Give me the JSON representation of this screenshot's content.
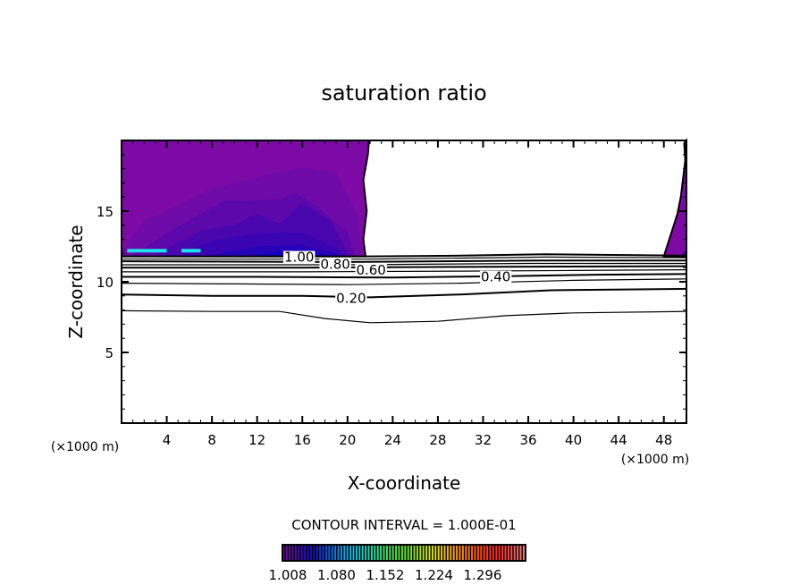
{
  "chart_data": {
    "type": "contour",
    "title": "saturation ratio",
    "xlabel": "X-coordinate",
    "ylabel": "Z-coordinate",
    "x_unit_left": "(×1000 m)",
    "x_unit_right": "(×1000 m)",
    "xlim": [
      0,
      50
    ],
    "ylim": [
      0,
      20
    ],
    "xticks": [
      4,
      8,
      12,
      16,
      20,
      24,
      28,
      32,
      36,
      40,
      44,
      48
    ],
    "yticks": [
      5,
      10,
      15
    ],
    "contour_interval_text": "CONTOUR INTERVAL = 1.000E-01",
    "contours": [
      {
        "level": 0.1,
        "label": "",
        "points": [
          [
            0,
            7.95
          ],
          [
            8,
            7.9
          ],
          [
            14,
            7.9
          ],
          [
            18,
            7.4
          ],
          [
            22,
            7.1
          ],
          [
            28,
            7.2
          ],
          [
            34,
            7.6
          ],
          [
            40,
            7.8
          ],
          [
            50,
            7.9
          ]
        ]
      },
      {
        "level": 0.2,
        "label": "0.20",
        "label_at": [
          19,
          8.9
        ],
        "points": [
          [
            0,
            9.1
          ],
          [
            8,
            9.0
          ],
          [
            16,
            9.0
          ],
          [
            22,
            8.9
          ],
          [
            30,
            9.1
          ],
          [
            38,
            9.4
          ],
          [
            50,
            9.5
          ]
        ]
      },
      {
        "level": 0.3,
        "label": "",
        "points": [
          [
            0,
            9.9
          ],
          [
            10,
            9.85
          ],
          [
            20,
            9.8
          ],
          [
            30,
            9.9
          ],
          [
            40,
            10.1
          ],
          [
            50,
            10.2
          ]
        ]
      },
      {
        "level": 0.4,
        "label": "0.40",
        "label_at": [
          31.8,
          10.4
        ],
        "points": [
          [
            0,
            10.35
          ],
          [
            12,
            10.35
          ],
          [
            24,
            10.3
          ],
          [
            34,
            10.4
          ],
          [
            42,
            10.5
          ],
          [
            50,
            10.55
          ]
        ]
      },
      {
        "level": 0.5,
        "label": "",
        "points": [
          [
            0,
            10.7
          ],
          [
            16,
            10.7
          ],
          [
            30,
            10.75
          ],
          [
            40,
            10.8
          ],
          [
            50,
            10.85
          ]
        ]
      },
      {
        "level": 0.6,
        "label": "0.60",
        "label_at": [
          17.6,
          10.9
        ],
        "points": [
          [
            0,
            11.0
          ],
          [
            16,
            11.0
          ],
          [
            30,
            11.05
          ],
          [
            50,
            11.1
          ]
        ]
      },
      {
        "level": 0.7,
        "label": "",
        "points": [
          [
            0,
            11.2
          ],
          [
            20,
            11.2
          ],
          [
            36,
            11.3
          ],
          [
            50,
            11.3
          ]
        ]
      },
      {
        "level": 0.8,
        "label": "0.80",
        "label_at": [
          17.6,
          11.3
        ],
        "points": [
          [
            0,
            11.45
          ],
          [
            20,
            11.4
          ],
          [
            37,
            11.5
          ],
          [
            50,
            11.5
          ]
        ]
      },
      {
        "level": 0.9,
        "label": "",
        "points": [
          [
            0,
            11.6
          ],
          [
            22,
            11.6
          ],
          [
            37.5,
            11.75
          ],
          [
            50,
            11.7
          ]
        ]
      },
      {
        "level": 1.0,
        "label": "1.00",
        "label_at": [
          14.4,
          11.8
        ],
        "points": [
          [
            0,
            11.8
          ],
          [
            22,
            11.8
          ],
          [
            30,
            11.85
          ],
          [
            37.5,
            11.95
          ],
          [
            50,
            11.85
          ]
        ]
      }
    ],
    "filled_regions": [
      {
        "value": 1.008,
        "color": "#7e0aa6",
        "points": [
          [
            0,
            20
          ],
          [
            21.9,
            20
          ],
          [
            21.8,
            19
          ],
          [
            21.4,
            17.2
          ],
          [
            21.7,
            15
          ],
          [
            21.4,
            13
          ],
          [
            21.6,
            11.8
          ],
          [
            0,
            11.8
          ]
        ]
      },
      {
        "value": 1.01,
        "color": "#6e0aa8",
        "points": [
          [
            0,
            12.2
          ],
          [
            2,
            14.3
          ],
          [
            8,
            16.6
          ],
          [
            14,
            17.8
          ],
          [
            16,
            18.1
          ],
          [
            19,
            17.7
          ],
          [
            21,
            14.5
          ],
          [
            21.2,
            11.8
          ],
          [
            0,
            11.8
          ]
        ]
      },
      {
        "value": 1.02,
        "color": "#5c08ab",
        "points": [
          [
            1,
            11.9
          ],
          [
            5,
            13.9
          ],
          [
            9,
            15.7
          ],
          [
            14,
            15.8
          ],
          [
            15.4,
            16.3
          ],
          [
            17,
            15.5
          ],
          [
            20,
            13.5
          ],
          [
            20.7,
            11.8
          ],
          [
            0,
            11.8
          ]
        ]
      },
      {
        "value": 1.03,
        "color": "#4a06ae",
        "points": [
          [
            3,
            11.9
          ],
          [
            7,
            13.6
          ],
          [
            10,
            14.0
          ],
          [
            12,
            14.8
          ],
          [
            14,
            14.1
          ],
          [
            16,
            15.6
          ],
          [
            18.5,
            14.3
          ],
          [
            20.2,
            11.8
          ],
          [
            2,
            11.8
          ]
        ]
      },
      {
        "value": 1.04,
        "color": "#3a04b2",
        "points": [
          [
            5,
            11.9
          ],
          [
            8,
            12.9
          ],
          [
            12,
            13.4
          ],
          [
            16,
            13.5
          ],
          [
            19,
            12.4
          ],
          [
            19.8,
            11.8
          ],
          [
            4,
            11.8
          ]
        ]
      },
      {
        "value": 1.05,
        "color": "#2602b8",
        "points": [
          [
            8,
            11.9
          ],
          [
            12,
            12.5
          ],
          [
            16,
            12.6
          ],
          [
            19,
            12.0
          ],
          [
            19.4,
            11.8
          ],
          [
            8,
            11.8
          ]
        ]
      },
      {
        "value": 1.06,
        "color": "#1400c0",
        "points": [
          [
            11,
            11.8
          ],
          [
            14,
            12.15
          ],
          [
            17,
            12.1
          ],
          [
            18.5,
            11.8
          ]
        ]
      },
      {
        "value": 1.008,
        "color": "#7e0aa6",
        "points": [
          [
            48,
            11.8
          ],
          [
            49.2,
            14.8
          ],
          [
            49.5,
            16.0
          ],
          [
            49.9,
            18.6
          ],
          [
            49.8,
            19.8
          ],
          [
            50,
            20
          ],
          [
            50,
            11.8
          ]
        ]
      },
      {
        "value": 1.02,
        "color": "#5c08ab",
        "points": [
          [
            49.4,
            11.8
          ],
          [
            50,
            12.4
          ],
          [
            50,
            11.8
          ]
        ]
      }
    ],
    "highlights": [
      {
        "color": "#20e0e8",
        "points": [
          [
            0.5,
            12.2
          ],
          [
            4,
            12.2
          ]
        ]
      },
      {
        "color": "#20e0e8",
        "points": [
          [
            5.3,
            12.2
          ],
          [
            7,
            12.2
          ]
        ]
      }
    ],
    "colorbar": {
      "tick_labels": [
        "1.008",
        "1.080",
        "1.152",
        "1.224",
        "1.296"
      ],
      "colors": [
        "#7a0a9e",
        "#1010c0",
        "#10a0f0",
        "#20e0a0",
        "#60e020",
        "#e0e020",
        "#ff8000",
        "#ff2020",
        "#f08080"
      ]
    }
  }
}
